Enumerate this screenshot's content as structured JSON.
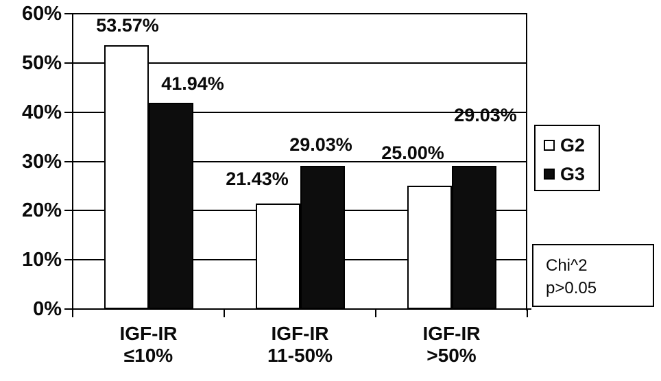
{
  "chart_data": {
    "type": "bar",
    "title": "",
    "xlabel": "",
    "ylabel": "",
    "categories": [
      {
        "line1": "IGF-IR",
        "line2": "≤10%"
      },
      {
        "line1": "IGF-IR",
        "line2": "11-50%"
      },
      {
        "line1": "IGF-IR",
        "line2": ">50%"
      }
    ],
    "series": [
      {
        "name": "G2",
        "fill": "#ffffff",
        "values": [
          53.57,
          21.43,
          25.0
        ],
        "data_labels": [
          "53.57%",
          "21.43%",
          "25.00%"
        ]
      },
      {
        "name": "G3",
        "fill": "#0d0d0d",
        "values": [
          41.94,
          29.03,
          29.03
        ],
        "data_labels": [
          "41.94%",
          "29.03%",
          "29.03%"
        ]
      }
    ],
    "ylim": [
      0,
      60
    ],
    "ytick_step": 10,
    "ytick_labels": [
      "0%",
      "10%",
      "20%",
      "30%",
      "40%",
      "50%",
      "60%"
    ],
    "grid": true,
    "legend_position": "right",
    "annotation": {
      "lines": [
        "Chi^2",
        "p>0.05"
      ]
    },
    "colors": {
      "axis": "#000000",
      "background": "#ffffff",
      "bar_outline": "#000000"
    },
    "label_layout": {
      "G2": [
        {
          "cx": 186,
          "top": 24
        },
        {
          "cx": 375,
          "top": 248
        },
        {
          "cx": 602,
          "top": 210
        }
      ],
      "G3": [
        {
          "cx": 281,
          "top": 109
        },
        {
          "cx": 468,
          "top": 198
        },
        {
          "cx": 708,
          "top": 155
        }
      ]
    }
  }
}
